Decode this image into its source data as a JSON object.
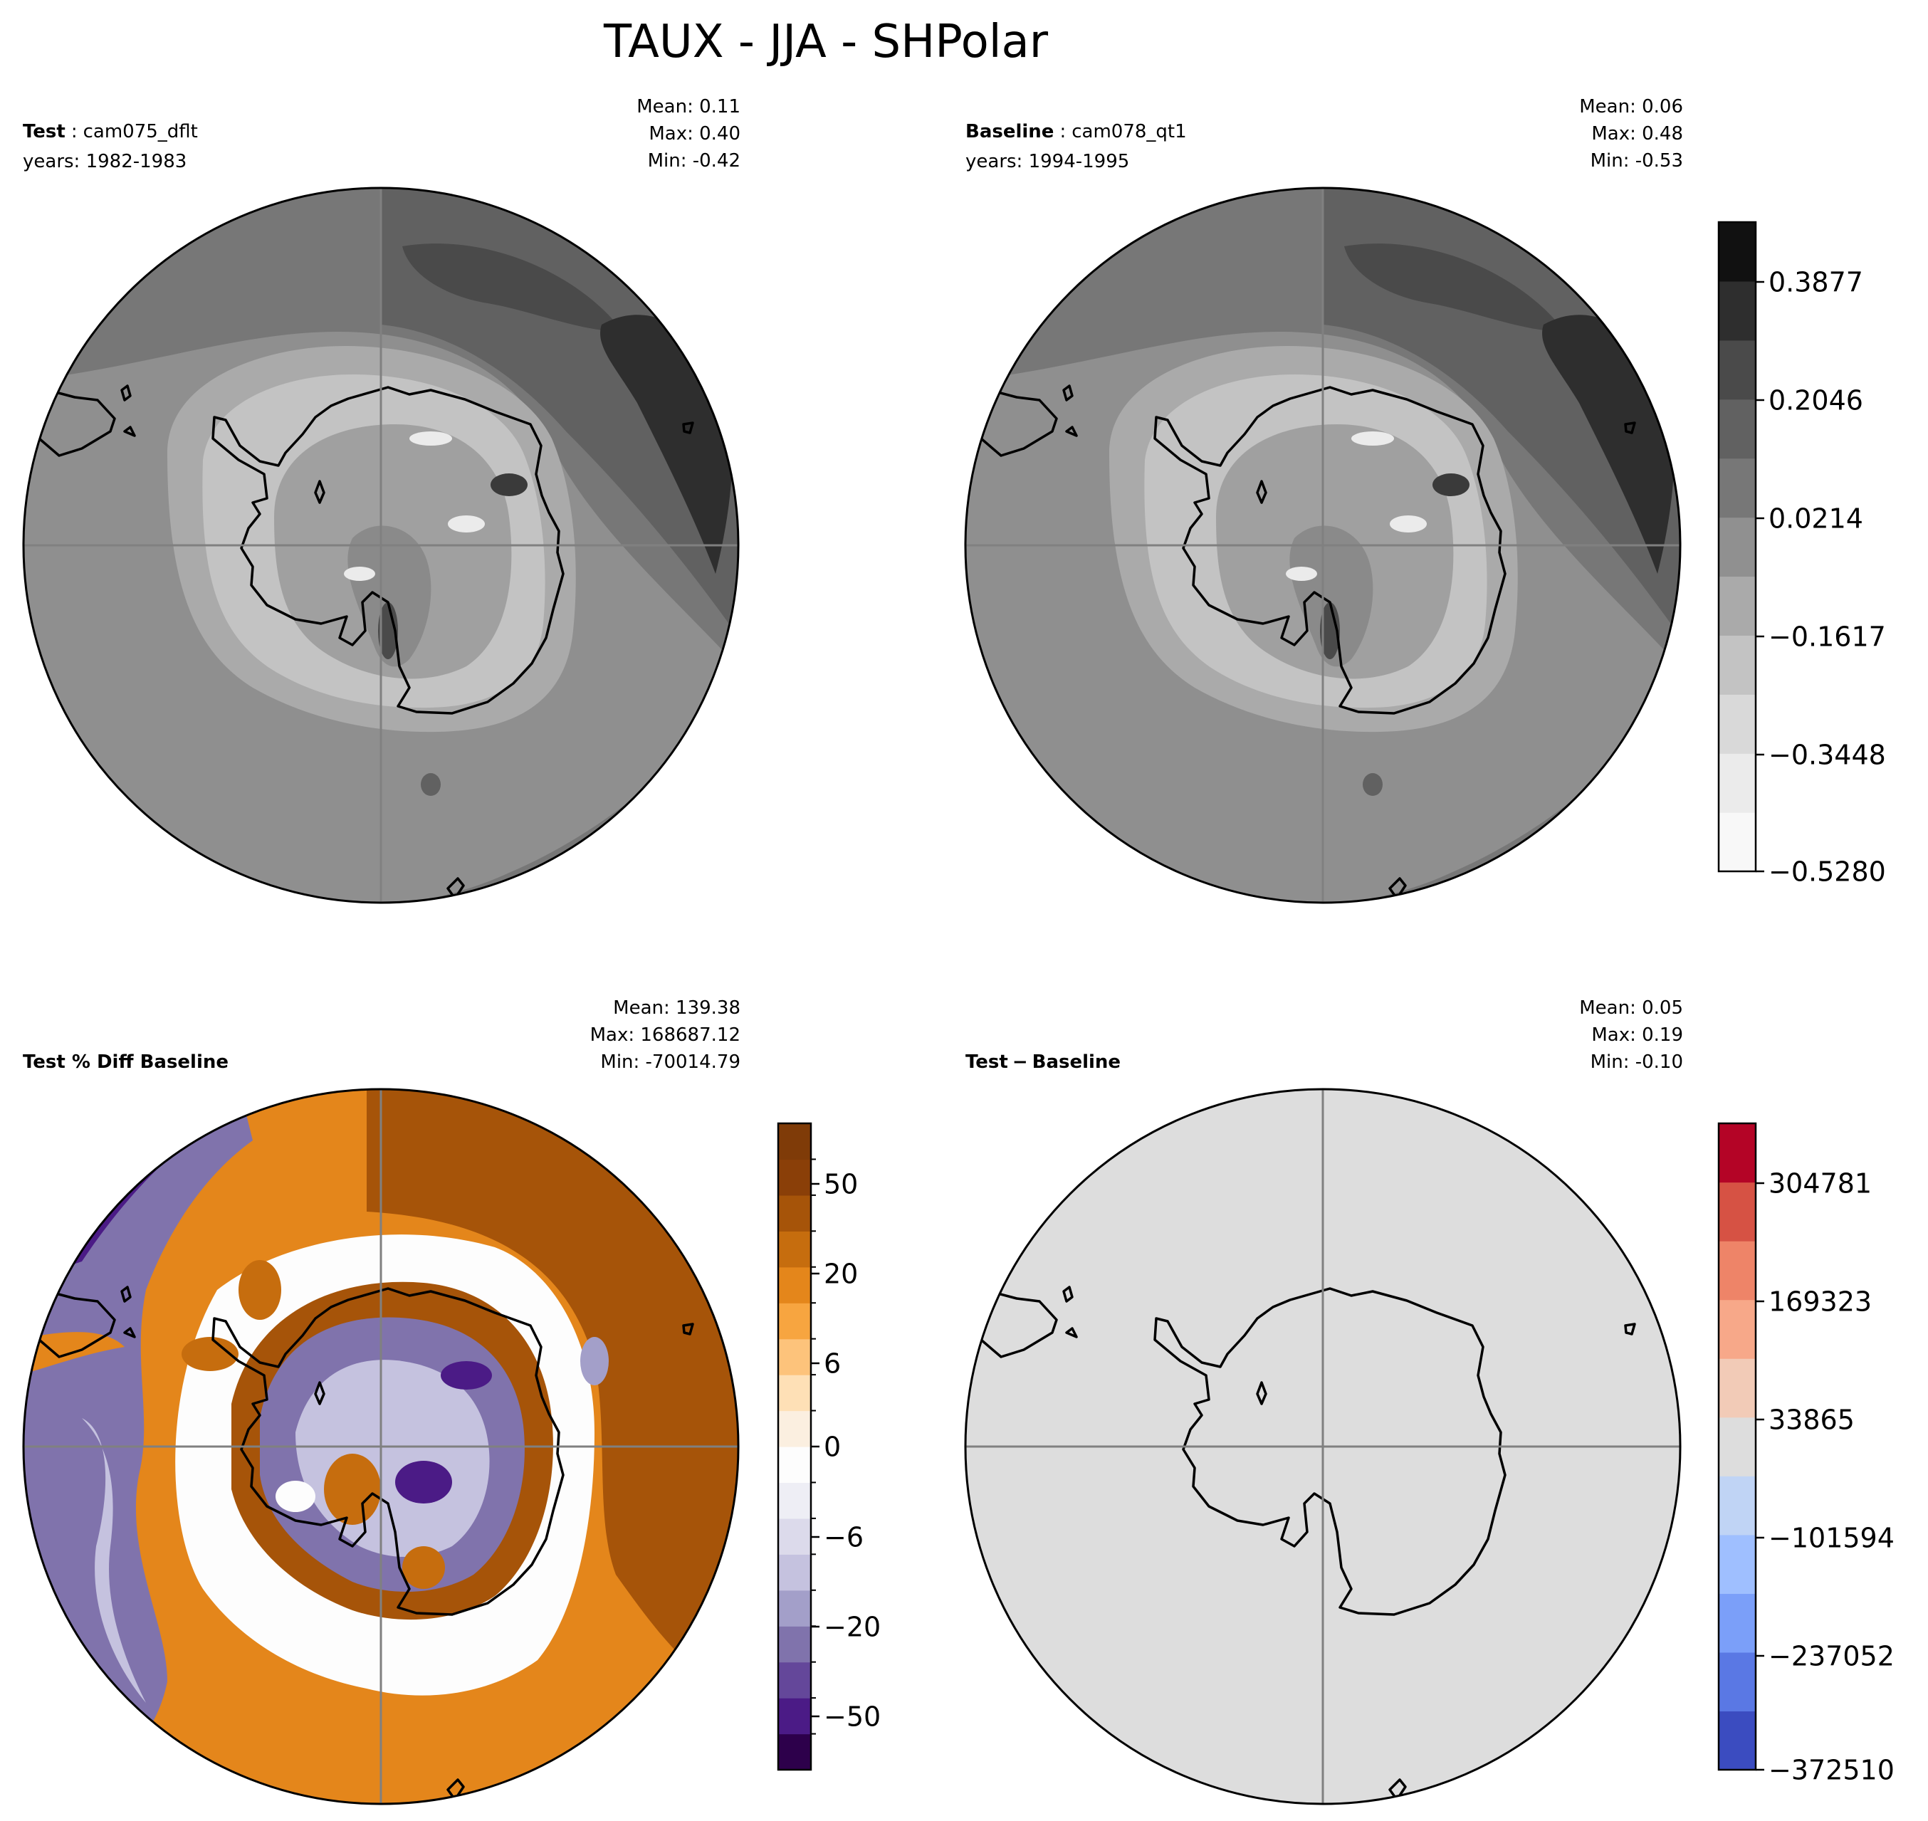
{
  "title": "TAUX - JJA - SHPolar",
  "colors": {
    "gray_ramp": [
      "#f8f8f8",
      "#ebebeb",
      "#d9d9d9",
      "#c3c3c3",
      "#aaaaaa",
      "#909090",
      "#777777",
      "#616161",
      "#4a4a4a",
      "#2e2e2e",
      "#111111"
    ],
    "brbg_ramp": [
      "#2d004b",
      "#4b1b86",
      "#64479a",
      "#8073ac",
      "#a39fc9",
      "#c5c2df",
      "#dcdaeb",
      "#eeeef5",
      "#fdfdfd",
      "#fbefe0",
      "#fee0b6",
      "#fdc37b",
      "#f7a540",
      "#e4861b",
      "#c66d0e",
      "#a65409",
      "#8a3f08",
      "#7f3b08"
    ],
    "diff_ramp": [
      "#3b4cc0",
      "#5a78e4",
      "#7b9ff9",
      "#9fbfff",
      "#c0d4f5",
      "#dddddd",
      "#f2cbb7",
      "#f7a889",
      "#ee8468",
      "#d65244",
      "#b40426"
    ],
    "land_line": "#000000",
    "grid_line": "#808080"
  },
  "panels": {
    "test": {
      "label_bold": "Test",
      "case_name": "cam075_dflt",
      "years": "years: 1982-1983",
      "mean": "Mean:  0.11",
      "max": "Max:  0.40",
      "min": "Min: -0.42"
    },
    "baseline": {
      "label_bold": "Baseline",
      "case_name": "cam078_qt1",
      "years": "years: 1994-1995",
      "mean": "Mean:  0.06",
      "max": "Max:  0.48",
      "min": "Min: -0.53"
    },
    "pct_diff": {
      "label_bold": "Test % Diff Baseline",
      "mean": "Mean: 139.38",
      "max": "Max: 168687.12",
      "min": "Min: -70014.79"
    },
    "diff": {
      "label_bold": "Test",
      "label_suffix": "Baseline",
      "mean": "Mean:  0.05",
      "max": "Max:  0.19",
      "min": "Min: -0.10"
    }
  },
  "chart_data": [
    {
      "type": "heatmap",
      "name": "Test field (polar contour map)",
      "stats": {
        "mean": 0.11,
        "max": 0.4,
        "min": -0.42
      }
    },
    {
      "type": "heatmap",
      "name": "Baseline field (polar contour map)",
      "stats": {
        "mean": 0.06,
        "max": 0.48,
        "min": -0.53
      },
      "colorbar_ticks": [
        "0.3877",
        "0.2046",
        "0.0214",
        "−0.1617",
        "−0.3448",
        "−0.5280"
      ],
      "colorbar_range": [
        -0.528,
        0.48
      ]
    },
    {
      "type": "heatmap",
      "name": "Test % Diff Baseline (polar contour map)",
      "stats": {
        "mean": 139.38,
        "max": 168687.12,
        "min": -70014.79
      },
      "colorbar_ticks": [
        "50",
        "20",
        "6",
        "0",
        "−6",
        "−20",
        "−50"
      ]
    },
    {
      "type": "heatmap",
      "name": "Test − Baseline (polar contour map)",
      "stats": {
        "mean": 0.05,
        "max": 0.19,
        "min": -0.1
      },
      "colorbar_ticks": [
        "304781",
        "169323",
        "33865",
        "−101594",
        "−237052",
        "−372510"
      ]
    }
  ]
}
